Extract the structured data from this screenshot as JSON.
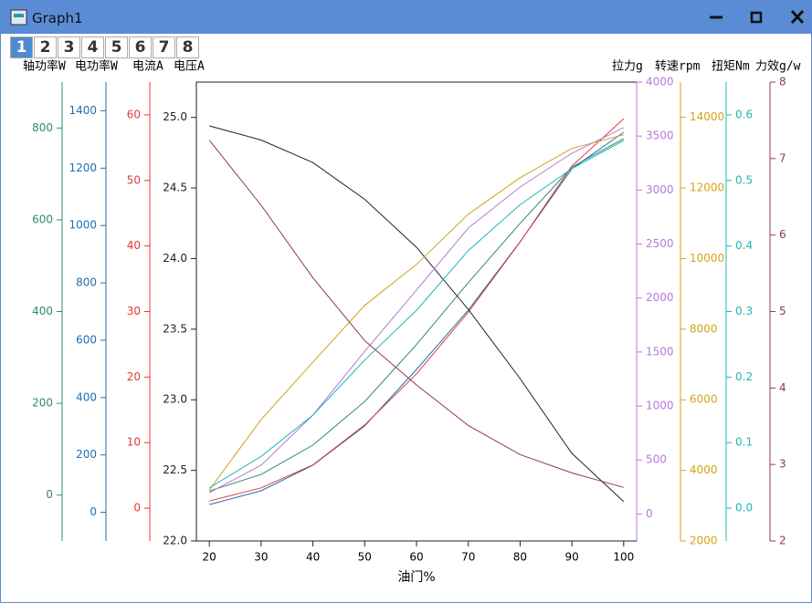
{
  "window": {
    "title": "Graph1"
  },
  "tabs": [
    "1",
    "2",
    "3",
    "4",
    "5",
    "6",
    "7",
    "8"
  ],
  "chart_data": {
    "type": "line",
    "x_label": "油门%",
    "x": [
      20,
      30,
      40,
      50,
      60,
      70,
      80,
      90,
      100
    ],
    "xlim": [
      17.5,
      102.5
    ],
    "xticks": [
      20,
      30,
      40,
      50,
      60,
      70,
      80,
      90,
      100
    ],
    "series": [
      {
        "name": "轴功率W",
        "color": "#2e8b6a",
        "values": [
          9,
          45,
          109,
          204,
          328,
          463,
          592,
          715,
          777
        ],
        "ylim": [
          -100,
          900
        ],
        "yticks": [
          0,
          200,
          400,
          600,
          800
        ]
      },
      {
        "name": "电功率W",
        "color": "#1f6fb0",
        "values": [
          27,
          75,
          164,
          301,
          498,
          705,
          943,
          1198,
          1325
        ],
        "ylim": [
          -100,
          1500
        ],
        "yticks": [
          0,
          200,
          400,
          600,
          800,
          1000,
          1200,
          1400
        ]
      },
      {
        "name": "电流A",
        "color": "#e03a3a",
        "values": [
          1.1,
          3.1,
          6.6,
          12.7,
          20.5,
          29.9,
          40.6,
          52.2,
          59.4
        ],
        "ylim": [
          -5,
          65
        ],
        "yticks": [
          0,
          10,
          20,
          30,
          40,
          50,
          60
        ]
      },
      {
        "name": "电压A",
        "color": "#222222",
        "values": [
          24.94,
          24.84,
          24.68,
          24.42,
          24.08,
          23.64,
          23.15,
          22.62,
          22.28
        ],
        "ylim": [
          22,
          25.25
        ],
        "yticks": [
          {
            "value": 22,
            "label": "22.0"
          },
          22.5,
          {
            "value": 23,
            "label": "23.0"
          },
          23.5,
          {
            "value": 24,
            "label": "24.0"
          },
          24.5,
          {
            "value": 25,
            "label": "25.0"
          }
        ]
      },
      {
        "name": "拉力g",
        "color": "#b57ad6",
        "values": [
          198,
          451,
          916,
          1507,
          2074,
          2648,
          3028,
          3341,
          3578
        ],
        "ylim": [
          -250,
          4000
        ],
        "yticks": [
          0,
          500,
          1000,
          1500,
          2000,
          2500,
          3000,
          3500,
          4000
        ]
      },
      {
        "name": "转速rpm",
        "color": "#d4a21a",
        "values": [
          3448,
          5439,
          7068,
          8672,
          9836,
          11258,
          12292,
          13120,
          13508
        ],
        "ylim": [
          2000,
          15000
        ],
        "yticks": [
          2000,
          4000,
          6000,
          8000,
          10000,
          12000,
          14000
        ]
      },
      {
        "name": "扭矩Nm",
        "color": "#22b5b5",
        "values": [
          0.031,
          0.079,
          0.142,
          0.226,
          0.302,
          0.393,
          0.463,
          0.518,
          0.561
        ],
        "ylim": [
          -0.05,
          0.65
        ],
        "yticks": [
          {
            "value": 0,
            "label": "0.0"
          },
          0.1,
          0.2,
          0.3,
          0.4,
          0.5,
          0.6
        ]
      },
      {
        "name": "力效g/w",
        "color": "#8b3a55",
        "values": [
          7.24,
          6.39,
          5.44,
          4.62,
          4.04,
          3.51,
          3.13,
          2.89,
          2.7
        ],
        "ylim": [
          2,
          8
        ],
        "yticks": [
          2,
          3,
          4,
          5,
          6,
          7,
          8
        ]
      }
    ]
  }
}
